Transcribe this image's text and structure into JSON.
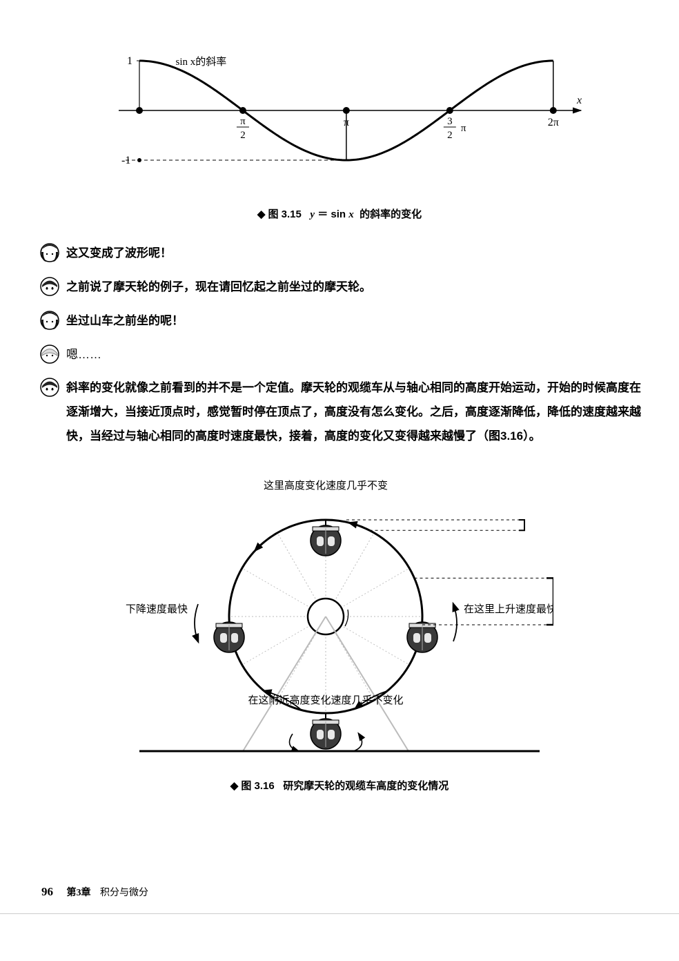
{
  "sine_chart": {
    "type": "line",
    "curve_label": "sin x的斜率",
    "x_axis_label": "x",
    "x_ticks": [
      {
        "val": 0,
        "label": ""
      },
      {
        "val": 1.5708,
        "label_num": "π",
        "label_den": "2"
      },
      {
        "val": 3.1416,
        "label": "π"
      },
      {
        "val": 4.7124,
        "label_num": "3",
        "label_den": "2",
        "suffix": "π"
      },
      {
        "val": 6.2832,
        "label": "2π"
      }
    ],
    "y_ticks": [
      {
        "val": 1,
        "label": "1"
      },
      {
        "val": -1,
        "label": "-1"
      }
    ],
    "xlim": [
      0,
      6.6
    ],
    "ylim": [
      -1.25,
      1.25
    ],
    "curve_color": "#000000",
    "curve_width": 3,
    "axis_color": "#000000",
    "point_radius": 5,
    "dash_color": "#000000",
    "background": "#ffffff"
  },
  "caption1": {
    "diamond": "◆",
    "prefix": "图 3.15",
    "text": "y ＝ sin x  的斜率的变化"
  },
  "dialogue": [
    {
      "avatar": "girl1",
      "bold": true,
      "text": "这又变成了波形呢！"
    },
    {
      "avatar": "girl2",
      "bold": true,
      "text": "之前说了摩天轮的例子，现在请回忆起之前坐过的摩天轮。"
    },
    {
      "avatar": "girl1",
      "bold": true,
      "text": "坐过山车之前坐的呢！"
    },
    {
      "avatar": "girl3",
      "bold": false,
      "text": "嗯……"
    },
    {
      "avatar": "girl2",
      "bold": true,
      "text": "斜率的变化就像之前看到的并不是一个定值。摩天轮的观缆车从与轴心相同的高度开始运动，开始的时候高度在逐渐增大，当接近顶点时，感觉暂时停在顶点了，高度没有怎么变化。之后，高度逐渐降低，降低的速度越来越快，当经过与轴心相同的高度时速度最快，接着，高度的变化又变得越来越慢了（图3.16）。"
    }
  ],
  "ferris": {
    "labels": {
      "top": "这里高度变化速度几乎不变",
      "left": "在这里下降速度最快",
      "right": "在这里上升速度最快",
      "bottom": "在这附近高度变化速度几乎不变化"
    },
    "colors": {
      "circle": "#000000",
      "cabin_fill": "#3a3a3a",
      "cabin_window": "#e8e8e8",
      "spoke": "#bbbbbb",
      "ground": "#000000",
      "bracket": "#000000"
    },
    "geom": {
      "radius": 140,
      "center_r": 26,
      "cabin_r": 22,
      "line_width": 3
    }
  },
  "caption2": {
    "diamond": "◆",
    "prefix": "图 3.16",
    "text": "研究摩天轮的观缆车高度的变化情况"
  },
  "footer": {
    "page": "96",
    "chapter": "第3章",
    "title": "积分与微分"
  }
}
